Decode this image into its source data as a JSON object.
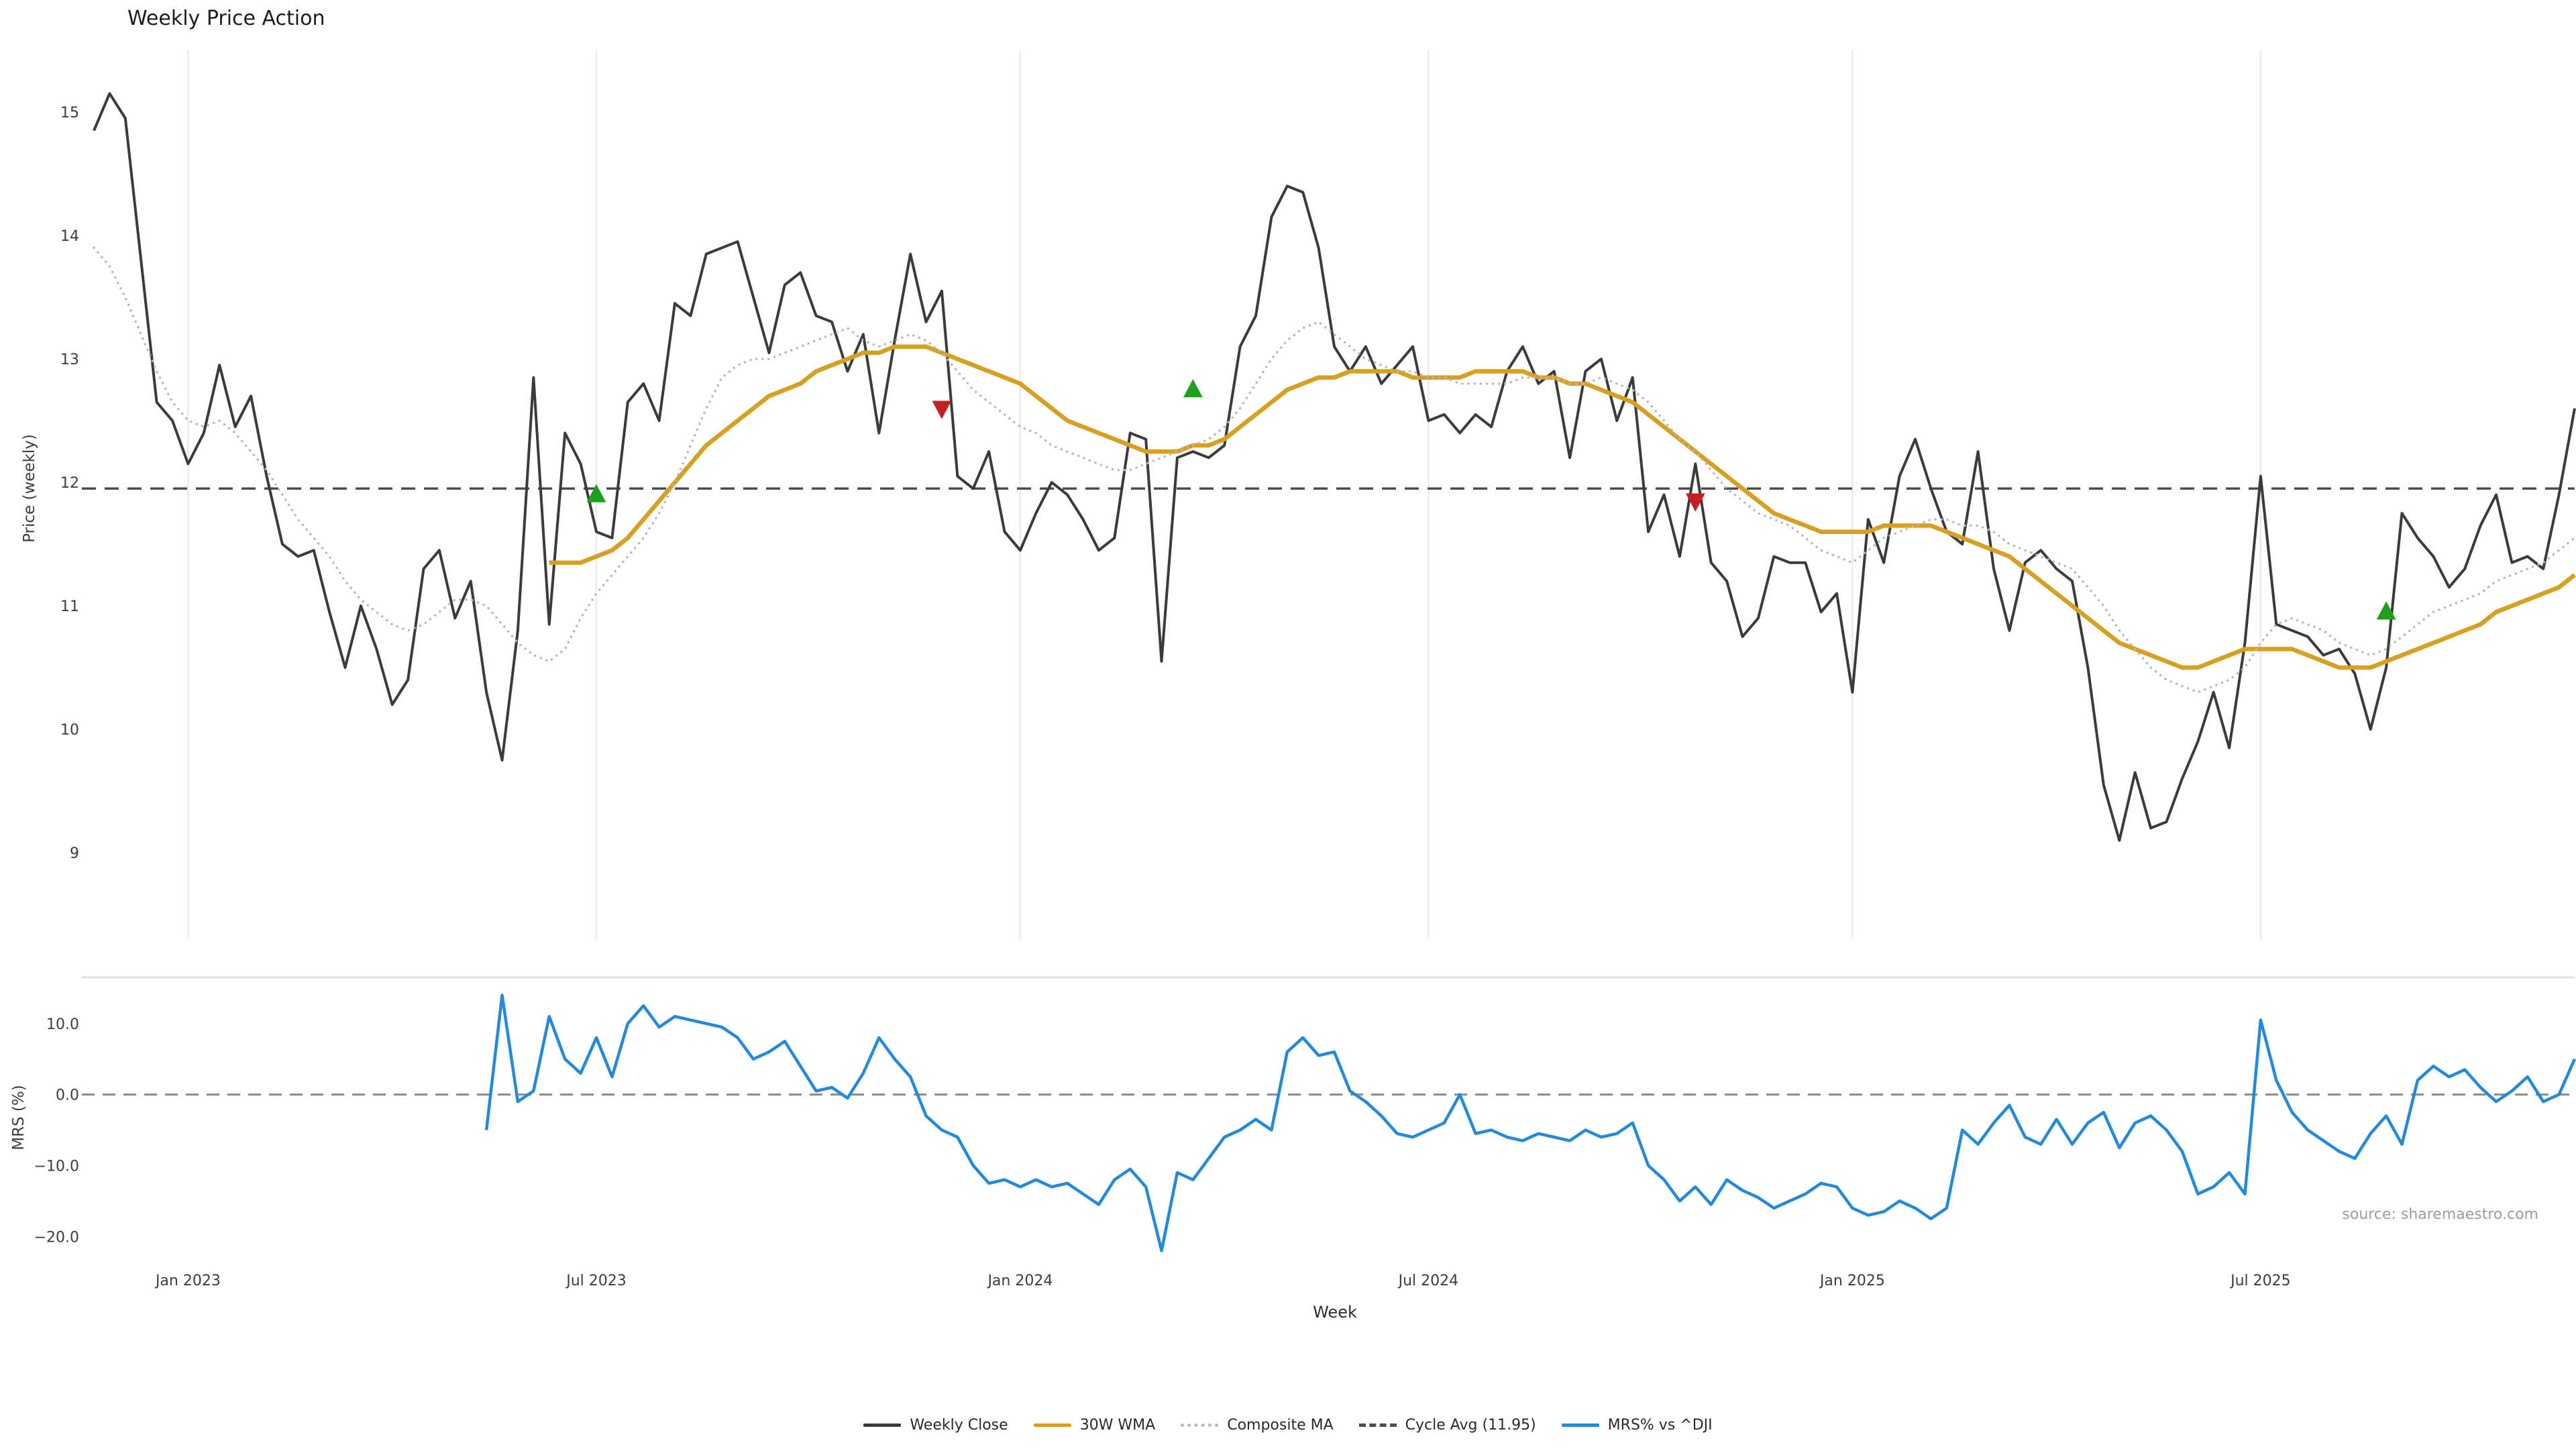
{
  "title": "Weekly Price Action",
  "source": "source: sharemaestro.com",
  "colors": {
    "close": "#3b3b3b",
    "wma": "#d7a021",
    "composite": "#b8b8b8",
    "cycle": "#4d4d4d",
    "mrs": "#2289dd",
    "buy": "#1da01d",
    "sell": "#c42020",
    "grid": "#eaeaea",
    "axis_text": "#3d3d3d",
    "source_text": "#9c9c9c"
  },
  "price_panel": {
    "ylabel": "Price (weekly)",
    "ylim": [
      8.3,
      15.5
    ],
    "yticks": [
      {
        "value": 9,
        "label": "9"
      },
      {
        "value": 10,
        "label": "10"
      },
      {
        "value": 11,
        "label": "11"
      },
      {
        "value": 12,
        "label": "12"
      },
      {
        "value": 13,
        "label": "13"
      },
      {
        "value": 14,
        "label": "14"
      },
      {
        "value": 15,
        "label": "15"
      }
    ]
  },
  "mrs_panel": {
    "ylabel": "MRS (%)",
    "ylim": [
      -23,
      16.5
    ],
    "yticks": [
      {
        "value": 10,
        "label": "10.0"
      },
      {
        "value": 0,
        "label": "0.0"
      },
      {
        "value": -10,
        "label": "−10.0"
      },
      {
        "value": -20,
        "label": "−20.0"
      }
    ]
  },
  "xaxis": {
    "label": "Week",
    "ticks": [
      {
        "week": 6,
        "label": "Jan 2023"
      },
      {
        "week": 32,
        "label": "Jul 2023"
      },
      {
        "week": 59,
        "label": "Jan 2024"
      },
      {
        "week": 85,
        "label": "Jul 2024"
      },
      {
        "week": 112,
        "label": "Jan 2025"
      },
      {
        "week": 138,
        "label": "Jul 2025"
      }
    ]
  },
  "legend": [
    {
      "label": "Weekly Close",
      "style": "solid",
      "color": "close"
    },
    {
      "label": "30W WMA",
      "style": "solid",
      "color": "wma"
    },
    {
      "label": "Composite MA",
      "style": "dotted",
      "color": "composite"
    },
    {
      "label": "Cycle Avg (11.95)",
      "style": "dashed",
      "color": "cycle"
    },
    {
      "label": "MRS% vs ^DJI",
      "style": "solid",
      "color": "mrs"
    }
  ],
  "chart_data": {
    "type": "line",
    "title": "Weekly Price Action",
    "x_unit": "week index",
    "n_weeks": 159,
    "reference_lines": {
      "cycle_avg": 11.95,
      "mrs_zero": 0.0
    },
    "series": [
      {
        "name": "Weekly Close",
        "panel": "price",
        "color": "close",
        "style": "solid",
        "start_week": 0,
        "values": [
          14.85,
          15.15,
          14.95,
          13.8,
          12.65,
          12.5,
          12.15,
          12.4,
          12.95,
          12.45,
          12.7,
          12.05,
          11.5,
          11.4,
          11.45,
          10.95,
          10.5,
          11.0,
          10.65,
          10.2,
          10.4,
          11.3,
          11.45,
          10.9,
          11.2,
          10.3,
          9.75,
          10.8,
          12.85,
          10.85,
          12.4,
          12.15,
          11.6,
          11.55,
          12.65,
          12.8,
          12.5,
          13.45,
          13.35,
          13.85,
          13.9,
          13.95,
          13.5,
          13.05,
          13.6,
          13.7,
          13.35,
          13.3,
          12.9,
          13.2,
          12.4,
          13.15,
          13.85,
          13.3,
          13.55,
          12.05,
          11.95,
          12.25,
          11.6,
          11.45,
          11.75,
          12.0,
          11.9,
          11.7,
          11.45,
          11.55,
          12.4,
          12.35,
          10.55,
          12.2,
          12.25,
          12.2,
          12.3,
          13.1,
          13.35,
          14.15,
          14.4,
          14.35,
          13.9,
          13.1,
          12.9,
          13.1,
          12.8,
          12.95,
          13.1,
          12.5,
          12.55,
          12.4,
          12.55,
          12.45,
          12.9,
          13.1,
          12.8,
          12.9,
          12.2,
          12.9,
          13.0,
          12.5,
          12.85,
          11.6,
          11.9,
          11.4,
          12.15,
          11.35,
          11.2,
          10.75,
          10.9,
          11.4,
          11.35,
          11.35,
          10.95,
          11.1,
          10.3,
          11.7,
          11.35,
          12.05,
          12.35,
          11.95,
          11.6,
          11.5,
          12.25,
          11.3,
          10.8,
          11.35,
          11.45,
          11.3,
          11.2,
          10.5,
          9.55,
          9.1,
          9.65,
          9.2,
          9.25,
          9.6,
          9.9,
          10.3,
          9.85,
          10.7,
          12.05,
          10.85,
          10.8,
          10.75,
          10.6,
          10.65,
          10.45,
          10.0,
          10.5,
          11.75,
          11.55,
          11.4,
          11.15,
          11.3,
          11.65,
          11.9,
          11.35,
          11.4,
          11.3,
          11.9,
          12.6
        ]
      },
      {
        "name": "30W WMA",
        "panel": "price",
        "color": "wma",
        "style": "solid",
        "start_week": 29,
        "values": [
          11.35,
          11.35,
          11.35,
          11.4,
          11.45,
          11.55,
          11.7,
          11.85,
          12.0,
          12.15,
          12.3,
          12.4,
          12.5,
          12.6,
          12.7,
          12.75,
          12.8,
          12.9,
          12.95,
          13.0,
          13.05,
          13.05,
          13.1,
          13.1,
          13.1,
          13.05,
          13.0,
          12.95,
          12.9,
          12.85,
          12.8,
          12.7,
          12.6,
          12.5,
          12.45,
          12.4,
          12.35,
          12.3,
          12.25,
          12.25,
          12.25,
          12.3,
          12.3,
          12.35,
          12.45,
          12.55,
          12.65,
          12.75,
          12.8,
          12.85,
          12.85,
          12.9,
          12.9,
          12.9,
          12.9,
          12.85,
          12.85,
          12.85,
          12.85,
          12.9,
          12.9,
          12.9,
          12.9,
          12.85,
          12.85,
          12.8,
          12.8,
          12.75,
          12.7,
          12.65,
          12.55,
          12.45,
          12.35,
          12.25,
          12.15,
          12.05,
          11.95,
          11.85,
          11.75,
          11.7,
          11.65,
          11.6,
          11.6,
          11.6,
          11.6,
          11.65,
          11.65,
          11.65,
          11.65,
          11.6,
          11.55,
          11.5,
          11.45,
          11.4,
          11.3,
          11.2,
          11.1,
          11.0,
          10.9,
          10.8,
          10.7,
          10.65,
          10.6,
          10.55,
          10.5,
          10.5,
          10.55,
          10.6,
          10.65,
          10.65,
          10.65,
          10.65,
          10.6,
          10.55,
          10.5,
          10.5,
          10.5,
          10.55,
          10.6,
          10.65,
          10.7,
          10.75,
          10.8,
          10.85,
          10.95,
          11.0,
          11.05,
          11.1,
          11.15,
          11.25
        ]
      },
      {
        "name": "Composite MA",
        "panel": "price",
        "color": "composite",
        "style": "dotted",
        "start_week": 0,
        "values": [
          13.9,
          13.75,
          13.5,
          13.2,
          12.9,
          12.65,
          12.5,
          12.45,
          12.5,
          12.4,
          12.25,
          12.1,
          11.9,
          11.7,
          11.55,
          11.4,
          11.2,
          11.05,
          10.95,
          10.85,
          10.8,
          10.85,
          10.95,
          11.05,
          11.05,
          11.0,
          10.85,
          10.7,
          10.6,
          10.55,
          10.65,
          10.9,
          11.1,
          11.25,
          11.4,
          11.55,
          11.75,
          12.0,
          12.3,
          12.6,
          12.85,
          12.95,
          13.0,
          13.0,
          13.05,
          13.1,
          13.15,
          13.2,
          13.25,
          13.15,
          13.1,
          13.15,
          13.2,
          13.15,
          13.05,
          12.9,
          12.75,
          12.65,
          12.55,
          12.45,
          12.4,
          12.3,
          12.25,
          12.2,
          12.15,
          12.1,
          12.1,
          12.15,
          12.2,
          12.25,
          12.3,
          12.35,
          12.45,
          12.6,
          12.8,
          13.0,
          13.15,
          13.25,
          13.3,
          13.2,
          13.1,
          13.0,
          12.95,
          12.9,
          12.9,
          12.85,
          12.85,
          12.8,
          12.8,
          12.8,
          12.8,
          12.85,
          12.85,
          12.85,
          12.8,
          12.8,
          12.85,
          12.8,
          12.75,
          12.65,
          12.5,
          12.35,
          12.25,
          12.1,
          11.95,
          11.85,
          11.75,
          11.7,
          11.65,
          11.55,
          11.45,
          11.4,
          11.35,
          11.45,
          11.55,
          11.6,
          11.65,
          11.7,
          11.7,
          11.65,
          11.65,
          11.6,
          11.5,
          11.45,
          11.4,
          11.35,
          11.3,
          11.15,
          11.0,
          10.8,
          10.65,
          10.5,
          10.4,
          10.35,
          10.3,
          10.35,
          10.4,
          10.5,
          10.7,
          10.85,
          10.9,
          10.85,
          10.8,
          10.7,
          10.65,
          10.6,
          10.65,
          10.75,
          10.85,
          10.95,
          11.0,
          11.05,
          11.1,
          11.2,
          11.25,
          11.3,
          11.35,
          11.45,
          11.55
        ]
      },
      {
        "name": "MRS% vs ^DJI",
        "panel": "mrs",
        "color": "mrs",
        "style": "solid",
        "start_week": 25,
        "values": [
          -5,
          14,
          -1,
          0.5,
          11,
          5,
          3,
          8,
          2.5,
          10,
          12.5,
          9.5,
          11,
          10.5,
          10,
          9.5,
          8,
          5,
          6,
          7.5,
          4,
          0.5,
          1,
          -0.5,
          3,
          8,
          5,
          2.5,
          -3,
          -5,
          -6,
          -10,
          -12.5,
          -12,
          -13,
          -12,
          -13,
          -12.5,
          -14,
          -15.5,
          -12,
          -10.5,
          -13,
          -22,
          -11,
          -12,
          -9,
          -6,
          -5,
          -3.5,
          -5,
          6,
          8,
          5.5,
          6,
          0.5,
          -1,
          -3,
          -5.5,
          -6,
          -5,
          -4,
          0,
          -5.5,
          -5,
          -6,
          -6.5,
          -5.5,
          -6,
          -6.5,
          -5,
          -6,
          -5.5,
          -4,
          -10,
          -12,
          -15,
          -13,
          -15.5,
          -12,
          -13.5,
          -14.5,
          -16,
          -15,
          -14,
          -12.5,
          -13,
          -16,
          -17,
          -16.5,
          -15,
          -16,
          -17.5,
          -16,
          -5,
          -7,
          -4,
          -1.5,
          -6,
          -7,
          -3.5,
          -7,
          -4,
          -2.5,
          -7.5,
          -4,
          -3,
          -5,
          -8,
          -14,
          -13,
          -11,
          -14,
          10.5,
          2,
          -2.5,
          -5,
          -6.5,
          -8,
          -9,
          -5.5,
          -3,
          -7,
          2,
          4,
          2.5,
          3.5,
          1,
          -1,
          0.5,
          2.5,
          -1,
          0,
          5
        ]
      }
    ],
    "signals": {
      "buy": [
        {
          "week": 32,
          "price": 11.9
        },
        {
          "week": 70,
          "price": 12.75
        },
        {
          "week": 146,
          "price": 10.95
        }
      ],
      "sell": [
        {
          "week": 54,
          "price": 12.6
        },
        {
          "week": 102,
          "price": 11.85
        }
      ]
    }
  }
}
